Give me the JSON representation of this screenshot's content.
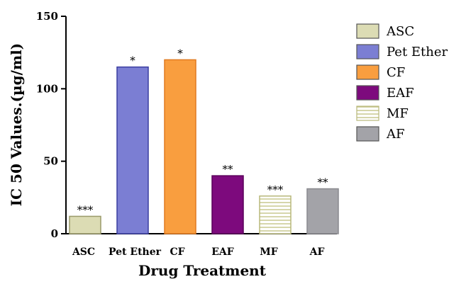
{
  "chart_data": {
    "type": "bar",
    "xlabel": "Drug Treatment",
    "ylabel": "IC 50 Values.(µg/ml)",
    "ylim": [
      0,
      150
    ],
    "yticks": [
      "0",
      "50",
      "100",
      "150"
    ],
    "categories": [
      "ASC",
      "Pet Ether",
      "CF",
      "EAF",
      "MF",
      "AF"
    ],
    "values": [
      12,
      115,
      120,
      40,
      26,
      31
    ],
    "significance": [
      "***",
      "*",
      "*",
      "**",
      "***",
      "**"
    ],
    "colors": [
      "#dcdcb4",
      "#7b7ed3",
      "#f99e3f",
      "#7d0a7d",
      "#ffffff",
      "#a3a3a8"
    ],
    "patterns": [
      "solid",
      "solid",
      "solid",
      "solid",
      "horizontal-lines",
      "solid"
    ],
    "legend_position": "right",
    "legend": [
      "ASC",
      "Pet Ether",
      "CF",
      "EAF",
      "MF",
      "AF"
    ],
    "grid": false
  }
}
